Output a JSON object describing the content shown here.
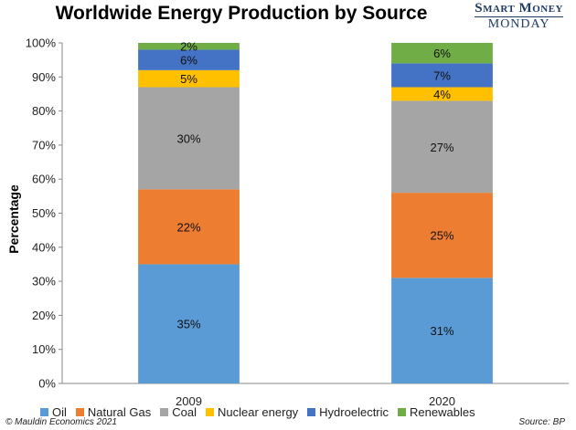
{
  "header": {
    "brand_line1": "Smart Money",
    "brand_line2": "MONDAY"
  },
  "footer": {
    "copyright": "© Mauldin Economics 2021",
    "source": "Source: BP"
  },
  "chart_data": {
    "type": "bar",
    "stacked": true,
    "title": "Worldwide Energy Production by Source",
    "xlabel": "",
    "ylabel": "Percentage",
    "ylim": [
      0,
      100
    ],
    "yticks": [
      "0%",
      "10%",
      "20%",
      "30%",
      "40%",
      "50%",
      "60%",
      "70%",
      "80%",
      "90%",
      "100%"
    ],
    "categories": [
      "2009",
      "2020"
    ],
    "grid": false,
    "legend_position": "bottom",
    "series": [
      {
        "name": "Oil",
        "color": "#5b9bd5",
        "values": [
          35,
          31
        ],
        "labels": [
          "35%",
          "31%"
        ]
      },
      {
        "name": "Natural Gas",
        "color": "#ed7d31",
        "values": [
          22,
          25
        ],
        "labels": [
          "22%",
          "25%"
        ]
      },
      {
        "name": "Coal",
        "color": "#a5a5a5",
        "values": [
          30,
          27
        ],
        "labels": [
          "30%",
          "27%"
        ]
      },
      {
        "name": "Nuclear energy",
        "color": "#ffc000",
        "values": [
          5,
          4
        ],
        "labels": [
          "5%",
          "4%"
        ]
      },
      {
        "name": "Hydroelectric",
        "color": "#4472c4",
        "values": [
          6,
          7
        ],
        "labels": [
          "6%",
          "7%"
        ]
      },
      {
        "name": "Renewables",
        "color": "#70ad47",
        "values": [
          2,
          6
        ],
        "labels": [
          "2%",
          "6%"
        ]
      }
    ]
  }
}
